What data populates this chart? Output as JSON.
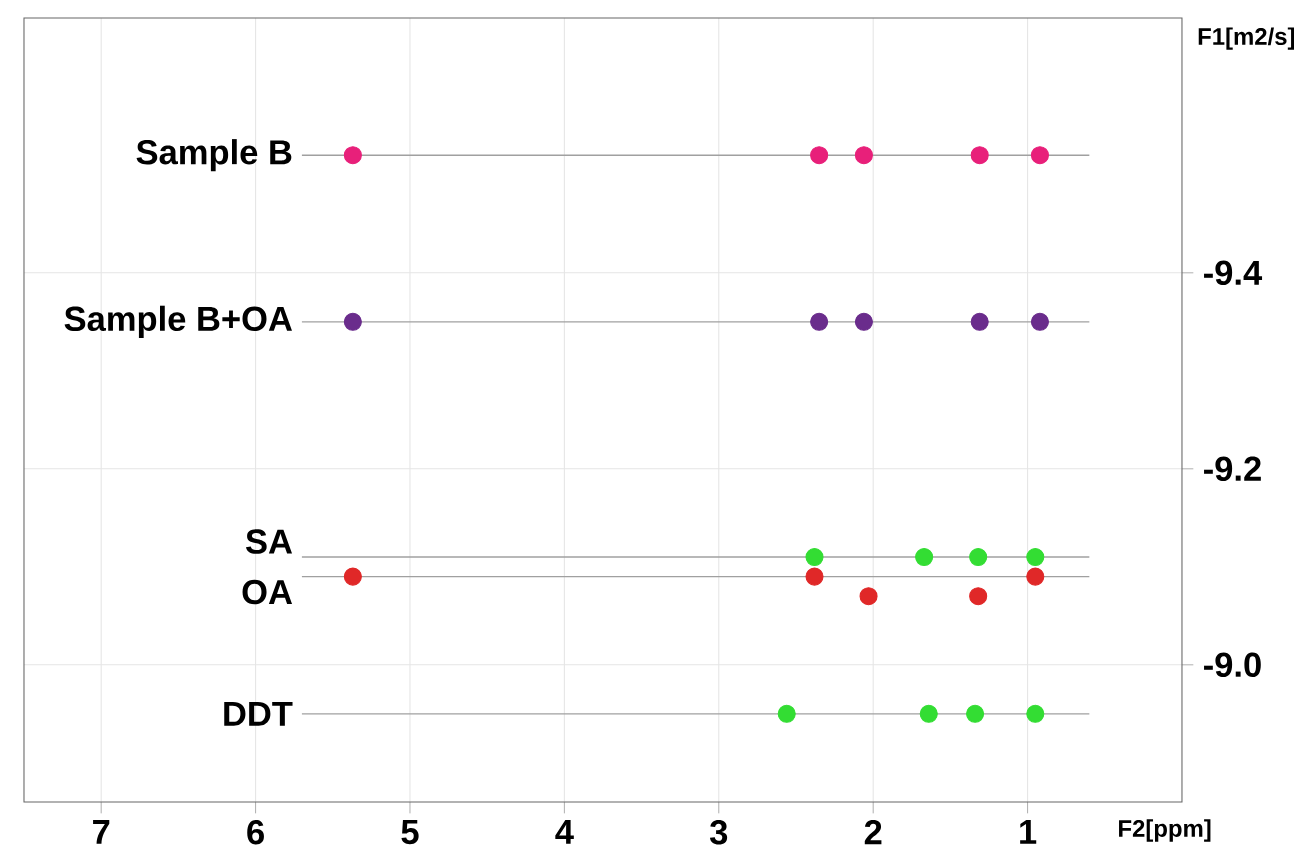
{
  "chart_data": {
    "type": "scatter",
    "xlabel": "F2[ppm]",
    "ylabel": "F1[m2/s]",
    "xlim": [
      7.5,
      0
    ],
    "ylim": [
      -8.86,
      -9.66
    ],
    "xticks": [
      7,
      6,
      5,
      4,
      3,
      2,
      1
    ],
    "yticks": [
      {
        "value": -9.4,
        "label": "-9.4"
      },
      {
        "value": -9.2,
        "label": "-9.2"
      },
      {
        "value": -9.0,
        "label": "-9.0"
      }
    ],
    "grid": true,
    "ref_lines": [
      {
        "axis": "y",
        "value": -9.52,
        "label": "Sample B",
        "color": "#a0a0a0"
      },
      {
        "axis": "y",
        "value": -9.35,
        "label": "Sample B+OA",
        "color": "#a0a0a0"
      },
      {
        "axis": "y",
        "value": -9.11,
        "label": "SA",
        "color": "#a0a0a0"
      },
      {
        "axis": "y",
        "value": -9.09,
        "label": "OA",
        "color": "#a0a0a0"
      },
      {
        "axis": "y",
        "value": -8.95,
        "label": "DDT",
        "color": "#a0a0a0"
      }
    ],
    "series": [
      {
        "color": "#e8207a",
        "x": [
          5.37,
          2.35,
          2.06,
          1.31,
          0.92
        ],
        "values": [
          -9.52,
          -9.52,
          -9.52,
          -9.52,
          -9.52
        ]
      },
      {
        "color": "#6a2c8c",
        "x": [
          5.37,
          2.35,
          2.06,
          1.31,
          0.92
        ],
        "values": [
          -9.35,
          -9.35,
          -9.35,
          -9.35,
          -9.35
        ]
      },
      {
        "color": "#e02828",
        "x": [
          5.37,
          2.38,
          2.03,
          1.32,
          0.95
        ],
        "values": [
          -9.09,
          -9.09,
          -9.07,
          -9.07,
          -9.09
        ]
      },
      {
        "color": "#33dd33",
        "x": [
          2.38,
          1.67,
          1.32,
          0.95
        ],
        "values": [
          -9.11,
          -9.11,
          -9.11,
          -9.11
        ]
      },
      {
        "color": "#33dd33",
        "x": [
          2.56,
          1.64,
          1.34,
          0.95
        ],
        "values": [
          -8.95,
          -8.95,
          -8.95,
          -8.95
        ]
      }
    ]
  }
}
